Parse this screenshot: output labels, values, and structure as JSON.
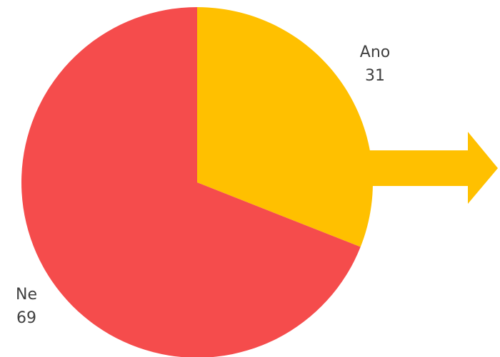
{
  "chart_data": {
    "type": "pie",
    "title": "",
    "start_angle_deg": 0,
    "direction": "clockwise",
    "slices": [
      {
        "label": "Ano",
        "value": 31,
        "color": "#FFC000"
      },
      {
        "label": "Ne",
        "value": 69,
        "color": "#F54C4C"
      }
    ],
    "annotation": {
      "type": "arrow",
      "color": "#FFC000",
      "direction": "right"
    }
  }
}
